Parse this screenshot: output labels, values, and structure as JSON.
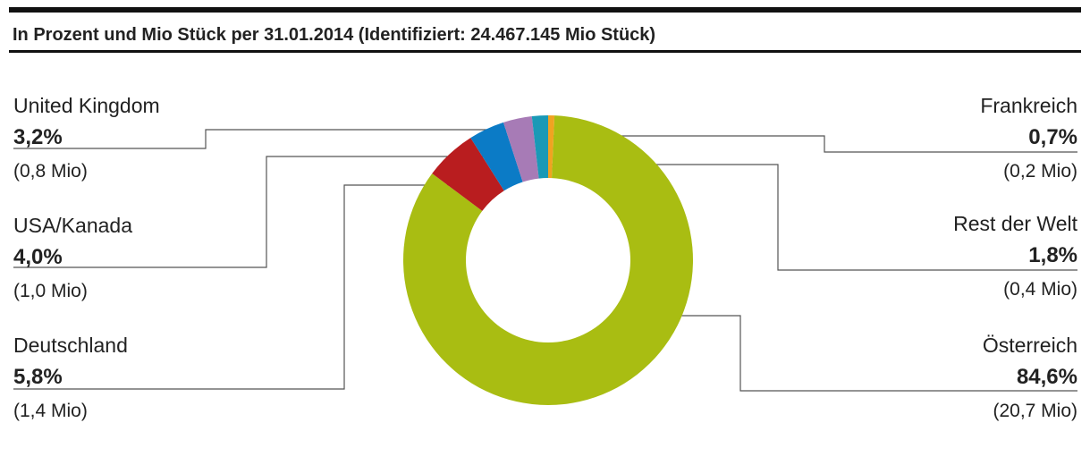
{
  "chart_data": {
    "type": "donut",
    "title": "In Prozent und Mio Stück per 31.01.2014 (Identifiziert: 24.467.145 Mio Stück)",
    "categories": [
      "Frankreich",
      "Österreich",
      "Deutschland",
      "USA/Kanada",
      "United Kingdom",
      "Rest der Welt"
    ],
    "values": [
      0.7,
      84.6,
      5.8,
      4.0,
      3.2,
      1.8
    ],
    "value_labels": [
      "0,7%",
      "84,6%",
      "5,8%",
      "4,0%",
      "3,2%",
      "1,8%"
    ],
    "sub_labels": [
      "(0,2 Mio)",
      "(20,7 Mio)",
      "(1,4 Mio)",
      "(1,0 Mio)",
      "(0,8 Mio)",
      "(0,4 Mio)"
    ],
    "colors": [
      "#f0a321",
      "#a9bd12",
      "#b91d1f",
      "#0b7bc6",
      "#a77bb6",
      "#1a99b6"
    ]
  }
}
